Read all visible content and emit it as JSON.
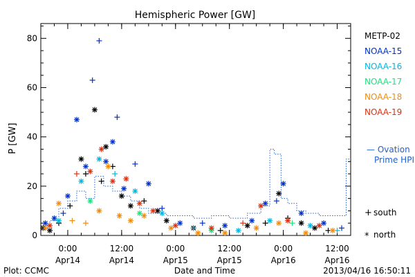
{
  "chart_data": {
    "type": "scatter",
    "title": "Hemispheric Power [GW]",
    "ylabel": "P [GW]",
    "xlabel": "Date and Time",
    "ylim": [
      0,
      86
    ],
    "xlim": [
      "2013-04-13 18:00",
      "2013-04-16 15:00"
    ],
    "yticks": [
      0,
      20,
      40,
      60,
      80
    ],
    "xticks": [
      {
        "t": "2013-04-14 00:00",
        "time": "0:00",
        "date": "Apr14"
      },
      {
        "t": "2013-04-14 12:00",
        "time": "12:00",
        "date": "Apr14"
      },
      {
        "t": "2013-04-15 00:00",
        "time": "0:00",
        "date": "Apr15"
      },
      {
        "t": "2013-04-15 12:00",
        "time": "12:00",
        "date": "Apr15"
      },
      {
        "t": "2013-04-16 00:00",
        "time": "0:00",
        "date": "Apr16"
      },
      {
        "t": "2013-04-16 12:00",
        "time": "12:00",
        "date": "Apr16"
      }
    ],
    "grid": false,
    "legend_position": "right",
    "series": [
      {
        "name": "METP-02",
        "color": "#000000",
        "points": [
          {
            "t": "2013-04-13 18:30",
            "v": 3,
            "h": "north"
          },
          {
            "t": "2013-04-13 20:00",
            "v": 2,
            "h": "north"
          },
          {
            "t": "2013-04-13 22:00",
            "v": 5,
            "h": "south"
          },
          {
            "t": "2013-04-14 00:30",
            "v": 12,
            "h": "south"
          },
          {
            "t": "2013-04-14 03:00",
            "v": 31,
            "h": "north"
          },
          {
            "t": "2013-04-14 04:00",
            "v": 25,
            "h": "south"
          },
          {
            "t": "2013-04-14 06:00",
            "v": 51,
            "h": "north"
          },
          {
            "t": "2013-04-14 07:30",
            "v": 22,
            "h": "south"
          },
          {
            "t": "2013-04-14 08:30",
            "v": 36,
            "h": "north"
          },
          {
            "t": "2013-04-14 10:00",
            "v": 28,
            "h": "south"
          },
          {
            "t": "2013-04-14 12:00",
            "v": 16,
            "h": "north"
          },
          {
            "t": "2013-04-14 14:00",
            "v": 12,
            "h": "north"
          },
          {
            "t": "2013-04-14 17:00",
            "v": 14,
            "h": "south"
          },
          {
            "t": "2013-04-14 20:00",
            "v": 10,
            "h": "north"
          },
          {
            "t": "2013-04-14 22:00",
            "v": 6,
            "h": "north"
          },
          {
            "t": "2013-04-15 04:00",
            "v": 3,
            "h": "north"
          },
          {
            "t": "2013-04-15 10:00",
            "v": 2,
            "h": "south"
          },
          {
            "t": "2013-04-15 16:00",
            "v": 4,
            "h": "north"
          },
          {
            "t": "2013-04-15 20:00",
            "v": 5,
            "h": "south"
          },
          {
            "t": "2013-04-15 23:00",
            "v": 17,
            "h": "north"
          },
          {
            "t": "2013-04-16 01:00",
            "v": 7,
            "h": "south"
          },
          {
            "t": "2013-04-16 04:00",
            "v": 5,
            "h": "north"
          },
          {
            "t": "2013-04-16 07:00",
            "v": 3,
            "h": "north"
          },
          {
            "t": "2013-04-16 10:00",
            "v": 2,
            "h": "south"
          }
        ]
      },
      {
        "name": "NOAA-15",
        "color": "#0030c8",
        "points": [
          {
            "t": "2013-04-13 19:00",
            "v": 5,
            "h": "north"
          },
          {
            "t": "2013-04-13 21:00",
            "v": 7,
            "h": "north"
          },
          {
            "t": "2013-04-13 23:00",
            "v": 9,
            "h": "south"
          },
          {
            "t": "2013-04-14 00:00",
            "v": 16,
            "h": "north"
          },
          {
            "t": "2013-04-14 02:00",
            "v": 47,
            "h": "north"
          },
          {
            "t": "2013-04-14 04:00",
            "v": 28,
            "h": "north"
          },
          {
            "t": "2013-04-14 05:30",
            "v": 63,
            "h": "south"
          },
          {
            "t": "2013-04-14 07:00",
            "v": 79,
            "h": "south"
          },
          {
            "t": "2013-04-14 08:30",
            "v": 30,
            "h": "north"
          },
          {
            "t": "2013-04-14 10:00",
            "v": 38,
            "h": "north"
          },
          {
            "t": "2013-04-14 11:00",
            "v": 48,
            "h": "south"
          },
          {
            "t": "2013-04-14 12:30",
            "v": 19,
            "h": "north"
          },
          {
            "t": "2013-04-14 15:00",
            "v": 29,
            "h": "south"
          },
          {
            "t": "2013-04-14 18:00",
            "v": 21,
            "h": "north"
          },
          {
            "t": "2013-04-14 21:00",
            "v": 11,
            "h": "south"
          },
          {
            "t": "2013-04-15 01:00",
            "v": 5,
            "h": "north"
          },
          {
            "t": "2013-04-15 06:00",
            "v": 5,
            "h": "south"
          },
          {
            "t": "2013-04-15 11:00",
            "v": 4,
            "h": "north"
          },
          {
            "t": "2013-04-15 17:00",
            "v": 6,
            "h": "north"
          },
          {
            "t": "2013-04-15 20:00",
            "v": 13,
            "h": "north"
          },
          {
            "t": "2013-04-15 22:30",
            "v": 14,
            "h": "south"
          },
          {
            "t": "2013-04-16 00:00",
            "v": 21,
            "h": "north"
          },
          {
            "t": "2013-04-16 04:00",
            "v": 9,
            "h": "north"
          },
          {
            "t": "2013-04-16 09:00",
            "v": 5,
            "h": "north"
          },
          {
            "t": "2013-04-16 13:00",
            "v": 3,
            "h": "south"
          }
        ]
      },
      {
        "name": "NOAA-16",
        "color": "#00b8e0",
        "points": [
          {
            "t": "2013-04-13 22:00",
            "v": 6,
            "h": "north"
          },
          {
            "t": "2013-04-14 03:00",
            "v": 22,
            "h": "north"
          },
          {
            "t": "2013-04-14 07:00",
            "v": 31,
            "h": "north"
          },
          {
            "t": "2013-04-14 10:30",
            "v": 25,
            "h": "south"
          },
          {
            "t": "2013-04-14 15:00",
            "v": 18,
            "h": "north"
          },
          {
            "t": "2013-04-14 21:00",
            "v": 9,
            "h": "north"
          },
          {
            "t": "2013-04-15 04:00",
            "v": 3,
            "h": "south"
          },
          {
            "t": "2013-04-15 14:00",
            "v": 2,
            "h": "north"
          },
          {
            "t": "2013-04-15 21:00",
            "v": 6,
            "h": "north"
          },
          {
            "t": "2013-04-16 06:00",
            "v": 4,
            "h": "north"
          },
          {
            "t": "2013-04-16 12:00",
            "v": 2,
            "h": "south"
          }
        ]
      },
      {
        "name": "NOAA-17",
        "color": "#20e080",
        "points": [
          {
            "t": "2013-04-14 05:00",
            "v": 14,
            "h": "north"
          },
          {
            "t": "2013-04-14 16:00",
            "v": 9,
            "h": "north"
          },
          {
            "t": "2013-04-15 08:00",
            "v": 2,
            "h": "north"
          },
          {
            "t": "2013-04-16 02:00",
            "v": 5,
            "h": "south"
          }
        ]
      },
      {
        "name": "NOAA-18",
        "color": "#f08c10",
        "points": [
          {
            "t": "2013-04-13 19:00",
            "v": 3,
            "h": "north"
          },
          {
            "t": "2013-04-13 22:00",
            "v": 13,
            "h": "north"
          },
          {
            "t": "2013-04-14 01:00",
            "v": 6,
            "h": "south"
          },
          {
            "t": "2013-04-14 04:00",
            "v": 5,
            "h": "south"
          },
          {
            "t": "2013-04-14 07:00",
            "v": 10,
            "h": "north"
          },
          {
            "t": "2013-04-14 09:00",
            "v": 28,
            "h": "north"
          },
          {
            "t": "2013-04-14 11:30",
            "v": 8,
            "h": "north"
          },
          {
            "t": "2013-04-14 14:00",
            "v": 6,
            "h": "north"
          },
          {
            "t": "2013-04-14 17:00",
            "v": 8,
            "h": "north"
          },
          {
            "t": "2013-04-14 23:00",
            "v": 3,
            "h": "north"
          },
          {
            "t": "2013-04-15 05:00",
            "v": 1,
            "h": "north"
          },
          {
            "t": "2013-04-15 11:00",
            "v": 1,
            "h": "north"
          },
          {
            "t": "2013-04-15 18:00",
            "v": 3,
            "h": "north"
          },
          {
            "t": "2013-04-15 23:00",
            "v": 5,
            "h": "north"
          },
          {
            "t": "2013-04-16 05:00",
            "v": 1,
            "h": "north"
          },
          {
            "t": "2013-04-16 11:00",
            "v": 2,
            "h": "north"
          }
        ]
      },
      {
        "name": "NOAA-19",
        "color": "#e03010",
        "points": [
          {
            "t": "2013-04-13 20:00",
            "v": 4,
            "h": "north"
          },
          {
            "t": "2013-04-14 02:00",
            "v": 25,
            "h": "south"
          },
          {
            "t": "2013-04-14 05:00",
            "v": 26,
            "h": "north"
          },
          {
            "t": "2013-04-14 07:30",
            "v": 35,
            "h": "north"
          },
          {
            "t": "2013-04-14 10:00",
            "v": 22,
            "h": "north"
          },
          {
            "t": "2013-04-14 13:00",
            "v": 23,
            "h": "north"
          },
          {
            "t": "2013-04-14 16:00",
            "v": 13,
            "h": "north"
          },
          {
            "t": "2013-04-14 19:00",
            "v": 10,
            "h": "north"
          },
          {
            "t": "2013-04-15 00:00",
            "v": 4,
            "h": "north"
          },
          {
            "t": "2013-04-15 08:00",
            "v": 3,
            "h": "north"
          },
          {
            "t": "2013-04-15 15:00",
            "v": 5,
            "h": "south"
          },
          {
            "t": "2013-04-15 19:00",
            "v": 12,
            "h": "north"
          },
          {
            "t": "2013-04-16 01:00",
            "v": 6,
            "h": "north"
          },
          {
            "t": "2013-04-16 08:00",
            "v": 4,
            "h": "north"
          }
        ]
      }
    ],
    "ovation": {
      "name": "Ovation Prime HPI",
      "color": "#1f5fd0",
      "label_line1": "— Ovation",
      "label_line2": "Prime HPI",
      "steps": [
        {
          "t": "2013-04-13 18:00",
          "v": 4
        },
        {
          "t": "2013-04-13 20:00",
          "v": 6
        },
        {
          "t": "2013-04-13 22:00",
          "v": 11
        },
        {
          "t": "2013-04-14 00:00",
          "v": 14
        },
        {
          "t": "2013-04-14 02:00",
          "v": 18
        },
        {
          "t": "2013-04-14 04:00",
          "v": 15
        },
        {
          "t": "2013-04-14 06:00",
          "v": 24
        },
        {
          "t": "2013-04-14 08:00",
          "v": 20
        },
        {
          "t": "2013-04-14 10:00",
          "v": 18
        },
        {
          "t": "2013-04-14 12:00",
          "v": 16
        },
        {
          "t": "2013-04-14 14:00",
          "v": 14
        },
        {
          "t": "2013-04-14 16:00",
          "v": 11
        },
        {
          "t": "2013-04-14 18:00",
          "v": 9
        },
        {
          "t": "2013-04-14 20:00",
          "v": 9
        },
        {
          "t": "2013-04-14 22:00",
          "v": 8
        },
        {
          "t": "2013-04-15 00:00",
          "v": 8
        },
        {
          "t": "2013-04-15 04:00",
          "v": 7
        },
        {
          "t": "2013-04-15 08:00",
          "v": 8
        },
        {
          "t": "2013-04-15 12:00",
          "v": 7
        },
        {
          "t": "2013-04-15 16:00",
          "v": 9
        },
        {
          "t": "2013-04-15 19:00",
          "v": 12
        },
        {
          "t": "2013-04-15 21:00",
          "v": 35
        },
        {
          "t": "2013-04-15 22:00",
          "v": 33
        },
        {
          "t": "2013-04-15 23:30",
          "v": 15
        },
        {
          "t": "2013-04-16 01:00",
          "v": 13
        },
        {
          "t": "2013-04-16 03:00",
          "v": 10
        },
        {
          "t": "2013-04-16 05:00",
          "v": 9
        },
        {
          "t": "2013-04-16 08:00",
          "v": 8
        },
        {
          "t": "2013-04-16 14:00",
          "v": 31
        }
      ]
    },
    "marker_key": {
      "south_symbol": "+",
      "south_label": "south",
      "north_symbol": "*",
      "north_label": "north"
    }
  },
  "footer": {
    "plot_label": "Plot: CCMC",
    "timestamp": "2013/04/16 16:50:11"
  }
}
